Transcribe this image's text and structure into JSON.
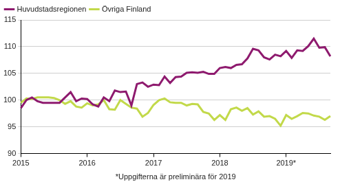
{
  "chart_data": {
    "type": "line",
    "x_label": "*Uppgifterna är preliminära för 2019",
    "categories": [
      "2015",
      null,
      null,
      null,
      null,
      null,
      null,
      null,
      null,
      null,
      null,
      null,
      "2016",
      null,
      null,
      null,
      null,
      null,
      null,
      null,
      null,
      null,
      null,
      null,
      "2017",
      null,
      null,
      null,
      null,
      null,
      null,
      null,
      null,
      null,
      null,
      null,
      "2018",
      null,
      null,
      null,
      null,
      null,
      null,
      null,
      null,
      null,
      null,
      null,
      "2019*",
      null,
      null,
      null,
      null,
      null,
      null,
      null,
      null
    ],
    "series": [
      {
        "name": "Huvudstadsregionen",
        "color": "#8e1a6e",
        "values": [
          98.5,
          100.0,
          100.5,
          99.8,
          99.5,
          99.5,
          99.5,
          99.5,
          100.5,
          101.5,
          99.8,
          100.3,
          100.2,
          99.2,
          98.8,
          100.5,
          99.8,
          101.8,
          101.5,
          101.6,
          99.0,
          103.0,
          103.3,
          102.5,
          102.9,
          102.8,
          104.4,
          103.2,
          104.3,
          104.4,
          105.1,
          105.2,
          105.1,
          105.3,
          104.9,
          104.9,
          106.0,
          106.2,
          106.0,
          106.6,
          106.7,
          107.8,
          109.6,
          109.3,
          108.0,
          107.6,
          108.5,
          108.2,
          109.2,
          107.9,
          109.3,
          109.2,
          110.1,
          111.5,
          109.8,
          109.9,
          108.2
        ]
      },
      {
        "name": "Övriga Finland",
        "color": "#c2d94a",
        "values": [
          99.5,
          100.3,
          100.2,
          100.5,
          100.5,
          100.5,
          100.4,
          100.0,
          99.3,
          99.8,
          98.8,
          98.6,
          99.4,
          99.0,
          99.2,
          100.0,
          98.3,
          98.2,
          100.0,
          99.3,
          98.6,
          98.4,
          96.9,
          97.6,
          99.1,
          100.0,
          100.3,
          99.6,
          99.5,
          99.5,
          99.0,
          99.3,
          99.2,
          97.8,
          97.5,
          96.3,
          97.2,
          96.3,
          98.3,
          98.6,
          98.0,
          98.5,
          97.3,
          97.9,
          96.9,
          97.0,
          96.5,
          95.2,
          97.2,
          96.5,
          97.0,
          97.6,
          97.5,
          97.1,
          96.9,
          96.3,
          97.0
        ]
      }
    ],
    "ylim": [
      90,
      115
    ],
    "yticks": [
      90,
      95,
      100,
      105,
      110,
      115
    ],
    "grid": true,
    "legend": "top-left"
  }
}
